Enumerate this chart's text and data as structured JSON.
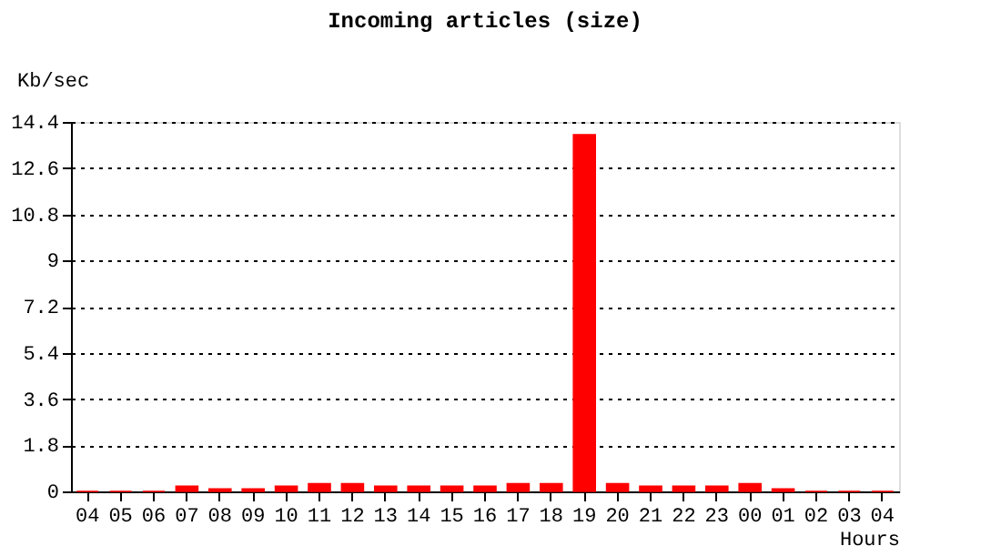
{
  "chart_data": {
    "type": "bar",
    "title": "Incoming articles (size)",
    "xlabel": "Hours",
    "ylabel": "Kb/sec",
    "categories": [
      "04",
      "05",
      "06",
      "07",
      "08",
      "09",
      "10",
      "11",
      "12",
      "13",
      "14",
      "15",
      "16",
      "17",
      "18",
      "19",
      "20",
      "21",
      "22",
      "23",
      "00",
      "01",
      "02",
      "03",
      "04"
    ],
    "values": [
      0,
      0,
      0,
      0.2,
      0.1,
      0.1,
      0.2,
      0.3,
      0.3,
      0.2,
      0.2,
      0.2,
      0.2,
      0.3,
      0.3,
      13.9,
      0.3,
      0.2,
      0.2,
      0.2,
      0.3,
      0.1,
      0,
      0,
      0
    ],
    "color": "#ff0000",
    "ylim": [
      0,
      14.4
    ],
    "yticks": [
      0,
      1.8,
      3.6,
      5.4,
      7.2,
      9,
      10.8,
      12.6,
      14.4
    ],
    "grid": "y"
  }
}
